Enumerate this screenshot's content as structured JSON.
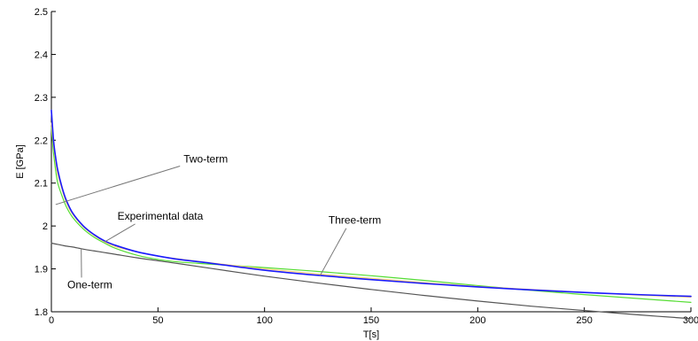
{
  "chart_data": {
    "type": "line",
    "title": "",
    "xlabel": "T[s]",
    "ylabel": "E [GPa]",
    "xlim": [
      0,
      300
    ],
    "ylim": [
      1.8,
      2.5
    ],
    "x_ticks": [
      0,
      50,
      100,
      150,
      200,
      250,
      300
    ],
    "y_ticks": [
      1.8,
      1.9,
      2.0,
      2.1,
      2.2,
      2.3,
      2.4,
      2.5
    ],
    "x_tick_labels": [
      "0",
      "50",
      "100",
      "150",
      "200",
      "250",
      "300"
    ],
    "y_tick_labels": [
      "1.8",
      "1.9",
      "2",
      "2.1",
      "2.2",
      "2.3",
      "2.4",
      "2.5"
    ],
    "grid": false,
    "legend": "none",
    "x": [
      0,
      1,
      2,
      3,
      5,
      7,
      10,
      15,
      20,
      25,
      30,
      40,
      50,
      60,
      75,
      100,
      125,
      150,
      175,
      200,
      225,
      250,
      275,
      300
    ],
    "series": [
      {
        "name": "Experimental data",
        "color": "#1a1aff",
        "values": [
          2.27,
          2.2,
          2.16,
          2.13,
          2.09,
          2.06,
          2.03,
          2.0,
          1.98,
          1.965,
          1.955,
          1.94,
          1.93,
          1.922,
          1.913,
          1.897,
          1.885,
          1.875,
          1.866,
          1.858,
          1.851,
          1.845,
          1.84,
          1.836
        ]
      },
      {
        "name": "Three-term",
        "color": "#ffd27a",
        "values": [
          2.24,
          2.19,
          2.15,
          2.12,
          2.085,
          2.055,
          2.027,
          1.998,
          1.978,
          1.963,
          1.952,
          1.94,
          1.93,
          1.923,
          1.914,
          1.9,
          1.888,
          1.878,
          1.868,
          1.859,
          1.852,
          1.845,
          1.839,
          1.834
        ]
      },
      {
        "name": "Two-term",
        "color": "#55dd33",
        "values": [
          2.23,
          2.17,
          2.13,
          2.1,
          2.07,
          2.045,
          2.02,
          1.993,
          1.974,
          1.96,
          1.948,
          1.932,
          1.922,
          1.916,
          1.911,
          1.903,
          1.894,
          1.884,
          1.873,
          1.861,
          1.85,
          1.84,
          1.831,
          1.822
        ]
      },
      {
        "name": "One-term",
        "color": "#555555",
        "values": [
          1.96,
          1.959,
          1.958,
          1.957,
          1.955,
          1.953,
          1.951,
          1.946,
          1.942,
          1.938,
          1.934,
          1.926,
          1.919,
          1.912,
          1.901,
          1.883,
          1.867,
          1.852,
          1.838,
          1.825,
          1.813,
          1.803,
          1.793,
          1.784
        ]
      }
    ],
    "annotations": [
      {
        "text": "Two-term",
        "x": 2,
        "y": 2.05,
        "text_x": 62,
        "text_y": 2.148
      },
      {
        "text": "Experimental data",
        "x": 25,
        "y": 1.963,
        "text_x": 31,
        "text_y": 2.015
      },
      {
        "text": "Three-term",
        "x": 126,
        "y": 1.884,
        "text_x": 130,
        "text_y": 2.005
      },
      {
        "text": "One-term",
        "x": 14,
        "y": 1.948,
        "text_x": 7.5,
        "text_y": 1.855
      }
    ]
  }
}
